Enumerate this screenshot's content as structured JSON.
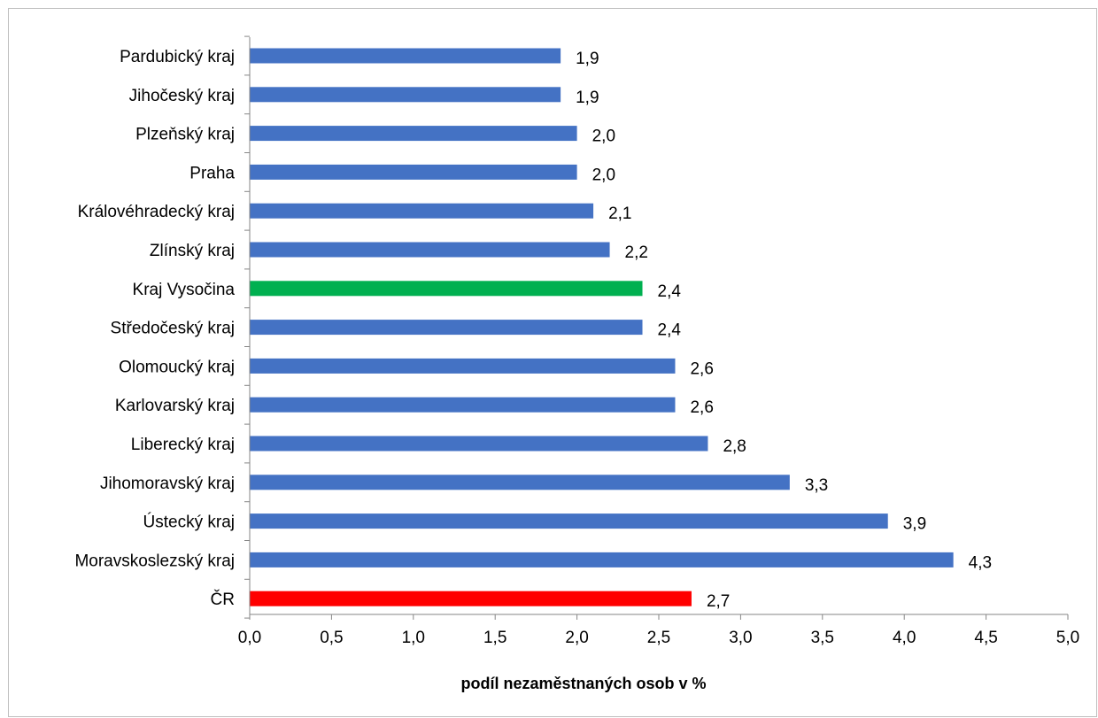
{
  "chart_data": {
    "type": "bar",
    "orientation": "horizontal",
    "categories": [
      "Pardubický kraj",
      "Jihočeský kraj",
      "Plzeňský kraj",
      "Praha",
      "Královéhradecký kraj",
      "Zlínský kraj",
      "Kraj Vysočina",
      "Středočeský kraj",
      "Olomoucký kraj",
      "Karlovarský kraj",
      "Liberecký kraj",
      "Jihomoravský kraj",
      "Ústecký kraj",
      "Moravskoslezský kraj",
      "ČR"
    ],
    "values": [
      1.9,
      1.9,
      2.0,
      2.0,
      2.1,
      2.2,
      2.4,
      2.4,
      2.6,
      2.6,
      2.8,
      3.3,
      3.9,
      4.3,
      2.7
    ],
    "value_labels": [
      "1,9",
      "1,9",
      "2,0",
      "2,0",
      "2,1",
      "2,2",
      "2,4",
      "2,4",
      "2,6",
      "2,6",
      "2,8",
      "3,3",
      "3,9",
      "4,3",
      "2,7"
    ],
    "bar_colors": [
      "#4472c4",
      "#4472c4",
      "#4472c4",
      "#4472c4",
      "#4472c4",
      "#4472c4",
      "#00b050",
      "#4472c4",
      "#4472c4",
      "#4472c4",
      "#4472c4",
      "#4472c4",
      "#4472c4",
      "#4472c4",
      "#ff0000"
    ],
    "xticks": [
      0,
      0.5,
      1.0,
      1.5,
      2.0,
      2.5,
      3.0,
      3.5,
      4.0,
      4.5,
      5.0
    ],
    "xtick_labels": [
      "0,0",
      "0,5",
      "1,0",
      "1,5",
      "2,0",
      "2,5",
      "3,0",
      "3,5",
      "4,0",
      "4,5",
      "5,0"
    ],
    "xlim": [
      0,
      5
    ],
    "title": "",
    "xlabel": "podíl nezaměstnaných osob v %",
    "ylabel": "",
    "grid": false,
    "legend": "none"
  }
}
